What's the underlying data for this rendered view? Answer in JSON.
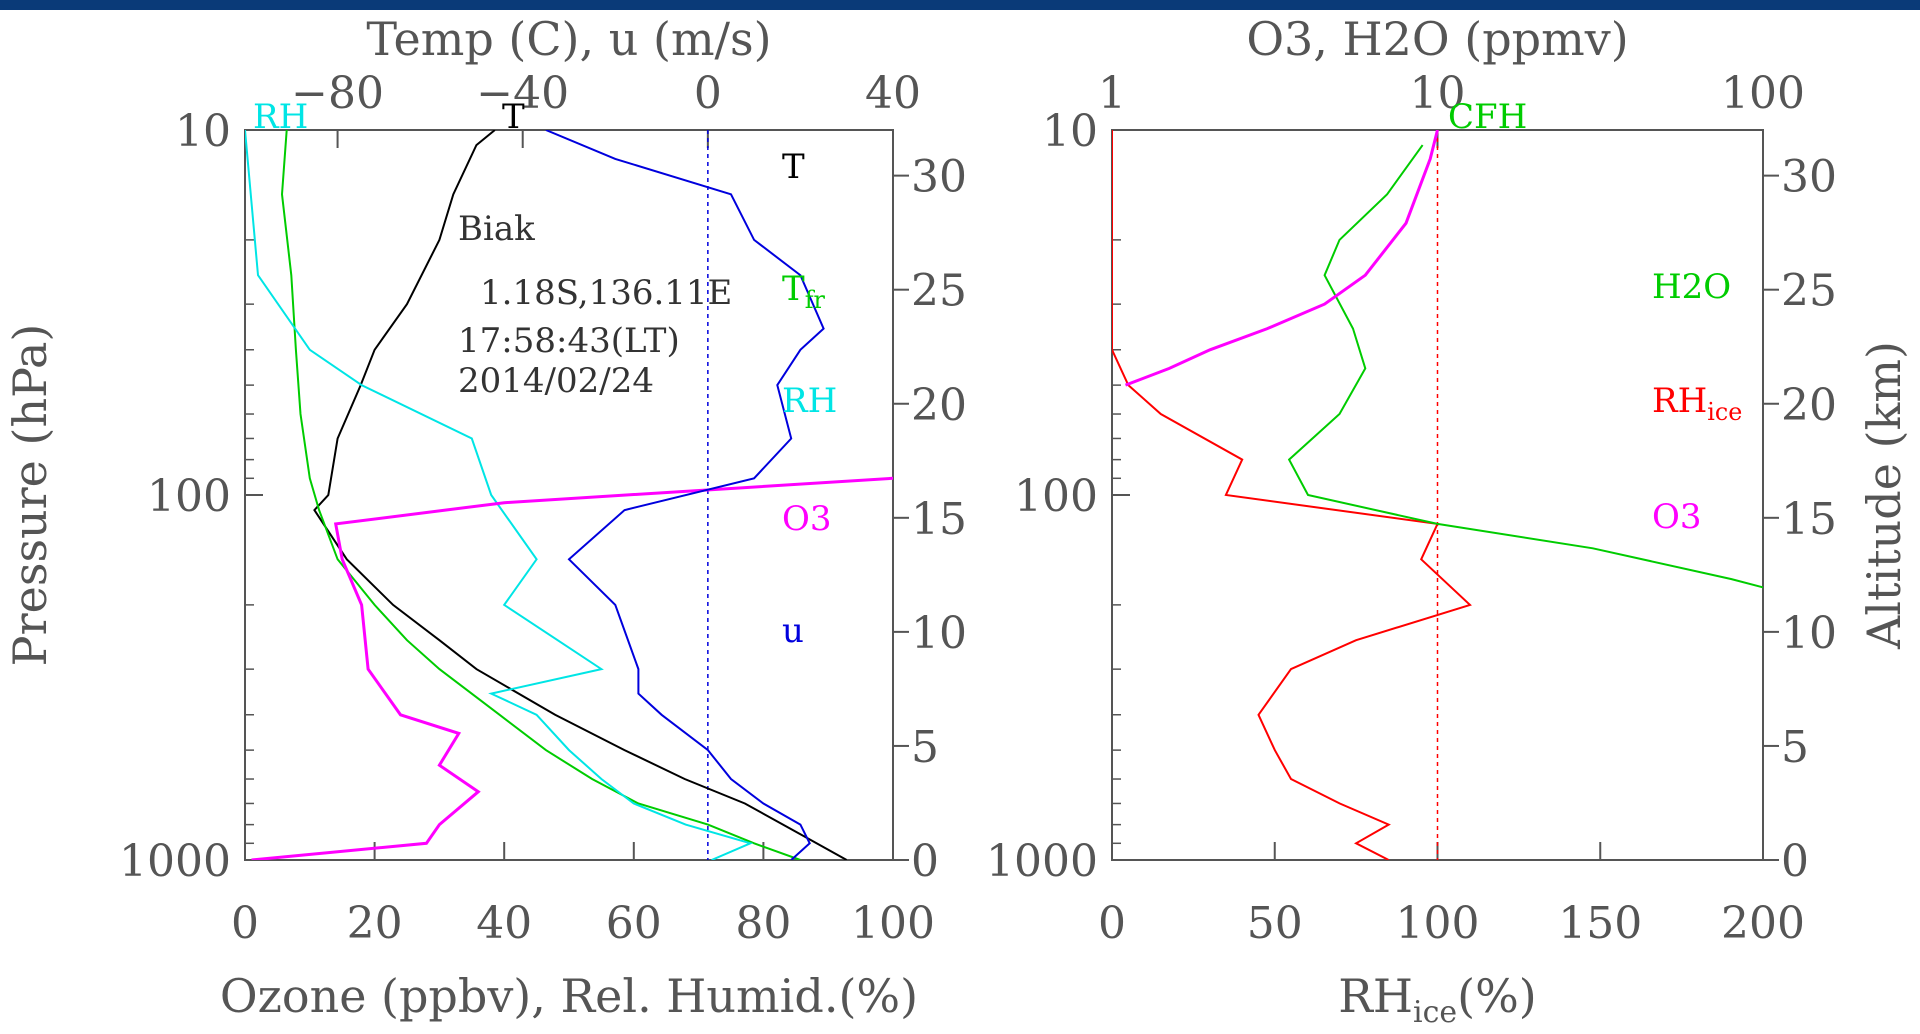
{
  "colors": {
    "header_bar": "#0a3a78",
    "axes": "#555555",
    "temperature": "#000000",
    "frost_point": "#00cc00",
    "relative_humidity": "#00e5e5",
    "ozone": "#ff00ff",
    "wind_u": "#0000dd",
    "rh_ice": "#ff0000",
    "water_vapor": "#00cc00"
  },
  "chart_data": [
    {
      "type": "line",
      "title": "",
      "xlabel": "Ozone (ppbv), Rel. Humid.(%)",
      "xlabel_top": "Temp (C), u (m/s)",
      "ylabel": "Pressure (hPa)",
      "ylabel_right": "",
      "x_bottom_ticks": [
        "0",
        "20",
        "40",
        "60",
        "80",
        "100"
      ],
      "x_bottom_range": [
        0,
        100
      ],
      "x_top_ticks": [
        "−80",
        "−40",
        "0",
        "40"
      ],
      "x_top_range": [
        -100,
        40
      ],
      "y_left_ticks": [
        "10",
        "100",
        "1000"
      ],
      "y_range_hpa": [
        1000,
        10
      ],
      "y_scale": "log",
      "y_right_ticks": [
        "0",
        "5",
        "10",
        "15",
        "20",
        "25",
        "30"
      ],
      "y_right_range_km": [
        0,
        32
      ],
      "grid": false,
      "reference_line": {
        "axis": "top",
        "value": 0,
        "style": "dotted",
        "color": "#0000dd"
      },
      "annotations": {
        "top_labels": [
          {
            "text": "RH",
            "color": "#00e5e5"
          },
          {
            "text": "T",
            "color": "#000000"
          }
        ],
        "station": "Biak",
        "coords": "1.18S,136.11E",
        "time": "17:58:43(LT)",
        "date": "2014/02/24"
      },
      "legend": [
        "T",
        "T",
        "fr",
        "RH",
        "O3",
        "u"
      ],
      "legend_placement": "right inside",
      "series": [
        {
          "name": "T",
          "axis": "top",
          "points": [
            [
              30,
              1000
            ],
            [
              20,
              850
            ],
            [
              8,
              700
            ],
            [
              -5,
              600
            ],
            [
              -18,
              500
            ],
            [
              -33,
              400
            ],
            [
              -50,
              300
            ],
            [
              -58,
              250
            ],
            [
              -68,
              200
            ],
            [
              -78,
              150
            ],
            [
              -85,
              110
            ],
            [
              -82,
              100
            ],
            [
              -80,
              70
            ],
            [
              -75,
              50
            ],
            [
              -72,
              40
            ],
            [
              -65,
              30
            ],
            [
              -58,
              20
            ],
            [
              -55,
              15
            ],
            [
              -50,
              11
            ],
            [
              -46,
              10
            ]
          ]
        },
        {
          "name": "T",
          "name_sub": "fr",
          "axis": "top",
          "points": [
            [
              20,
              1000
            ],
            [
              10,
              900
            ],
            [
              0,
              800
            ],
            [
              -15,
              700
            ],
            [
              -25,
              600
            ],
            [
              -35,
              500
            ],
            [
              -45,
              400
            ],
            [
              -58,
              300
            ],
            [
              -65,
              250
            ],
            [
              -72,
              200
            ],
            [
              -80,
              150
            ],
            [
              -84,
              110
            ],
            [
              -86,
              90
            ],
            [
              -88,
              60
            ],
            [
              -89,
              40
            ],
            [
              -90,
              25
            ],
            [
              -92,
              15
            ],
            [
              -91,
              10
            ]
          ]
        },
        {
          "name": "RH",
          "axis": "bottom",
          "points": [
            [
              72,
              1000
            ],
            [
              78,
              900
            ],
            [
              68,
              800
            ],
            [
              60,
              700
            ],
            [
              55,
              600
            ],
            [
              50,
              500
            ],
            [
              45,
              400
            ],
            [
              38,
              350
            ],
            [
              55,
              300
            ],
            [
              40,
              200
            ],
            [
              45,
              150
            ],
            [
              38,
              100
            ],
            [
              35,
              70
            ],
            [
              18,
              50
            ],
            [
              10,
              40
            ],
            [
              2,
              25
            ],
            [
              0,
              10
            ]
          ]
        },
        {
          "name": "O3",
          "axis": "bottom",
          "points": [
            [
              1,
              1000
            ],
            [
              28,
              900
            ],
            [
              30,
              800
            ],
            [
              36,
              650
            ],
            [
              30,
              550
            ],
            [
              33,
              450
            ],
            [
              24,
              400
            ],
            [
              19,
              300
            ],
            [
              18,
              200
            ],
            [
              15,
              150
            ],
            [
              14,
              120
            ],
            [
              40,
              105
            ],
            [
              100,
              90
            ]
          ]
        },
        {
          "name": "u",
          "axis": "top",
          "points": [
            [
              18,
              1000
            ],
            [
              22,
              900
            ],
            [
              20,
              800
            ],
            [
              12,
              700
            ],
            [
              5,
              600
            ],
            [
              0,
              500
            ],
            [
              -10,
              400
            ],
            [
              -15,
              350
            ],
            [
              -15,
              300
            ],
            [
              -20,
              200
            ],
            [
              -30,
              150
            ],
            [
              -18,
              110
            ],
            [
              10,
              90
            ],
            [
              18,
              70
            ],
            [
              15,
              50
            ],
            [
              20,
              40
            ],
            [
              25,
              35
            ],
            [
              20,
              25
            ],
            [
              10,
              20
            ],
            [
              5,
              15
            ],
            [
              -20,
              12
            ],
            [
              -35,
              10
            ]
          ]
        }
      ]
    },
    {
      "type": "line",
      "title": "",
      "xlabel": "RH",
      "xlabel_sub": "ice",
      "xlabel_after": "(%)",
      "xlabel_top": "O3, H2O (ppmv)",
      "ylabel": "",
      "ylabel_right": "Altitude (km)",
      "x_bottom_ticks": [
        "0",
        "50",
        "100",
        "150",
        "200"
      ],
      "x_bottom_range": [
        0,
        200
      ],
      "x_top_ticks": [
        "1",
        "10",
        "100"
      ],
      "x_top_range": [
        1,
        100
      ],
      "x_top_scale": "log",
      "y_left_ticks": [
        "10",
        "100",
        "1000"
      ],
      "y_range_hpa": [
        1000,
        10
      ],
      "y_scale": "log",
      "y_right_ticks": [
        "0",
        "5",
        "10",
        "15",
        "20",
        "25",
        "30"
      ],
      "y_right_range_km": [
        0,
        32
      ],
      "grid": false,
      "reference_line": {
        "axis": "bottom",
        "value": 100,
        "style": "dotted",
        "color": "#ff0000"
      },
      "annotations": {
        "top_labels": [
          {
            "text": "CFH",
            "color": "#00cc00"
          }
        ]
      },
      "legend": [
        "H2O",
        "RH",
        "ice",
        "O3"
      ],
      "legend_placement": "right inside",
      "series": [
        {
          "name": "RH",
          "name_sub": "ice",
          "axis": "bottom",
          "points": [
            [
              85,
              1000
            ],
            [
              75,
              900
            ],
            [
              85,
              800
            ],
            [
              70,
              700
            ],
            [
              55,
              600
            ],
            [
              50,
              500
            ],
            [
              45,
              400
            ],
            [
              55,
              300
            ],
            [
              75,
              250
            ],
            [
              110,
              200
            ],
            [
              95,
              150
            ],
            [
              100,
              120
            ],
            [
              35,
              100
            ],
            [
              40,
              80
            ],
            [
              15,
              60
            ],
            [
              5,
              50
            ],
            [
              0,
              40
            ],
            [
              0,
              10
            ]
          ]
        },
        {
          "name": "H2O",
          "axis": "top",
          "points": [
            [
              160,
              200
            ],
            [
              80,
              170
            ],
            [
              30,
              140
            ],
            [
              10,
              120
            ],
            [
              4,
              100
            ],
            [
              3.5,
              80
            ],
            [
              5,
              60
            ],
            [
              6,
              45
            ],
            [
              5.5,
              35
            ],
            [
              4.5,
              25
            ],
            [
              5,
              20
            ],
            [
              7,
              15
            ],
            [
              9,
              11
            ]
          ]
        },
        {
          "name": "O3",
          "axis": "top",
          "points": [
            [
              1.1,
              50
            ],
            [
              1.5,
              45
            ],
            [
              2,
              40
            ],
            [
              3,
              35
            ],
            [
              4.5,
              30
            ],
            [
              6,
              25
            ],
            [
              8,
              18
            ],
            [
              9.5,
              12
            ],
            [
              10,
              10
            ]
          ]
        }
      ]
    }
  ]
}
